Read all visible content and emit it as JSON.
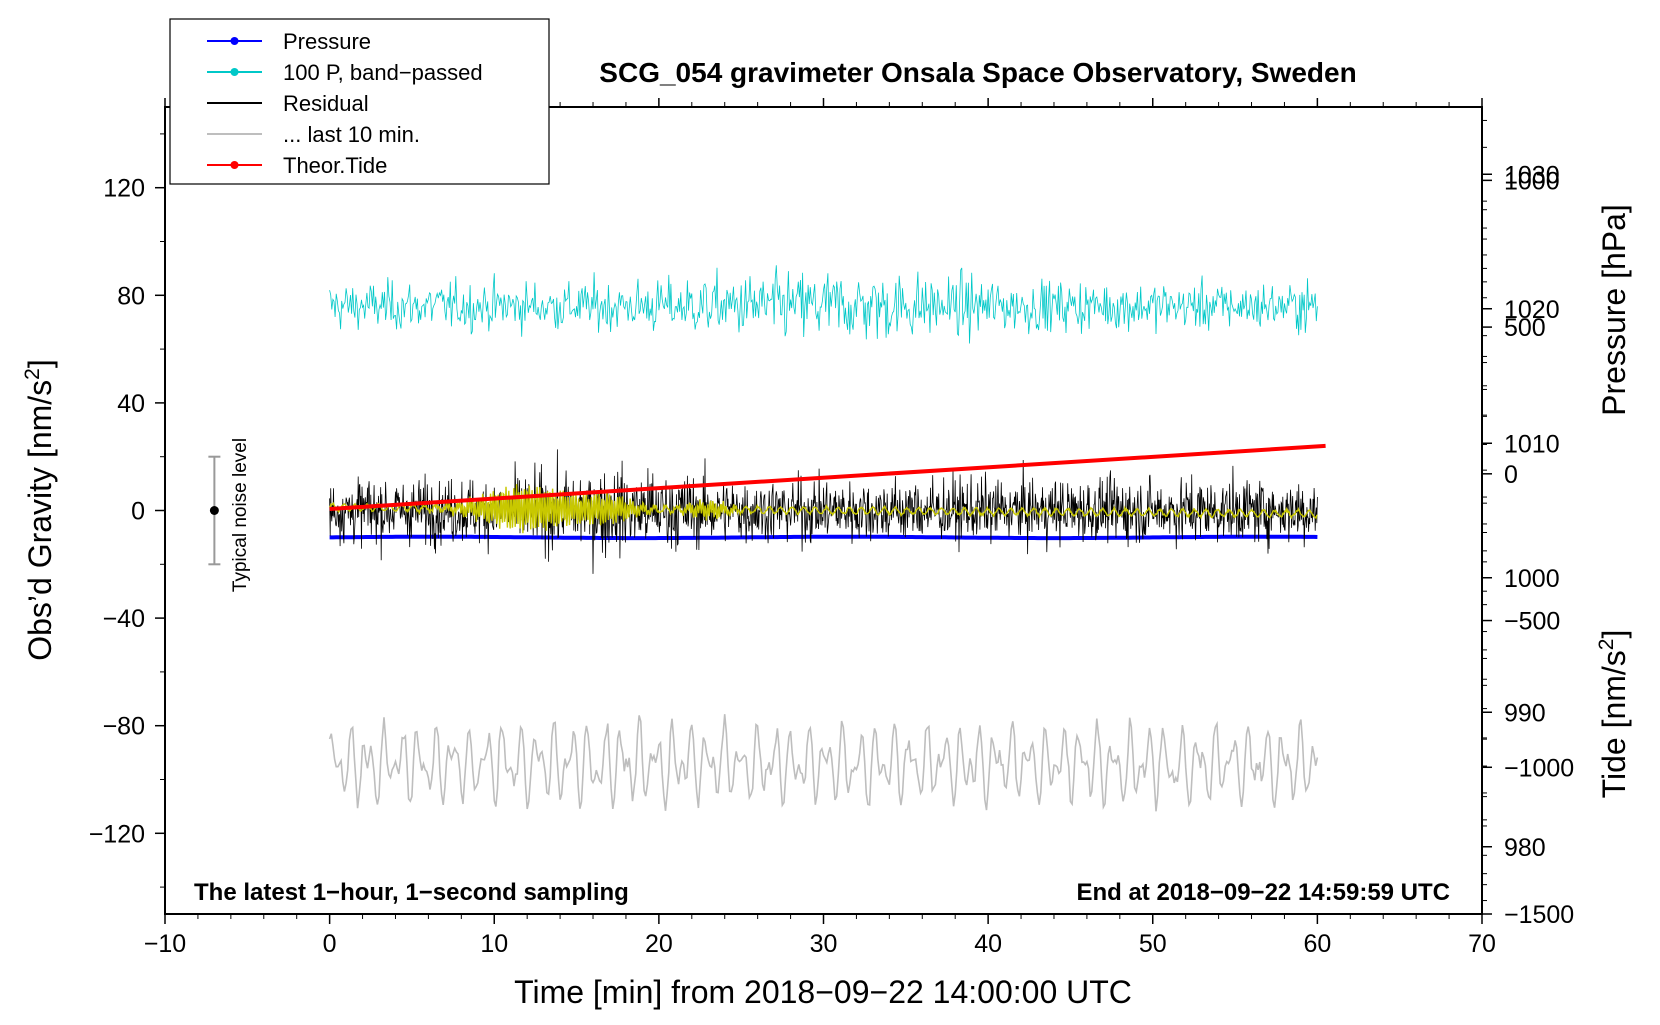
{
  "chart_data": {
    "type": "line",
    "title": "SCG_054 gravimeter Onsala Space Observatory, Sweden",
    "xlabel": "Time [min] from 2018−09−22 14:00:00 UTC",
    "ylabel_left": "Obs’d Gravity [nm/s",
    "ylabel_left_suffix": "]",
    "ylabel_pressure": "Pressure [hPa]",
    "ylabel_tide": "Tide [nm/s",
    "ylabel_tide_suffix": "]",
    "superscript": "2",
    "xlim": [
      -10,
      70
    ],
    "ylim_left": [
      -150,
      150
    ],
    "ylim_pressure": [
      975,
      1035
    ],
    "ylim_tide": [
      -1500,
      1250
    ],
    "x_ticks": [
      -10,
      0,
      10,
      20,
      30,
      40,
      50,
      60,
      70
    ],
    "x_tick_labels": [
      "−10",
      "0",
      "10",
      "20",
      "30",
      "40",
      "50",
      "60",
      "70"
    ],
    "y_left_ticks": [
      120,
      80,
      40,
      0,
      -40,
      -80,
      -120
    ],
    "y_left_tick_labels": [
      "120",
      "80",
      "40",
      "0",
      "−40",
      "−80",
      "−120"
    ],
    "y_pressure_ticks": [
      1030,
      1020,
      1010,
      1000,
      990,
      980
    ],
    "y_pressure_tick_labels": [
      "1030",
      "1020",
      "1010",
      "1000",
      "990",
      "980"
    ],
    "y_tide_ticks": [
      1000,
      500,
      0,
      -500,
      -1000,
      -1500
    ],
    "y_tide_tick_labels": [
      "1000",
      "500",
      "0",
      "−500",
      "−1000",
      "−1500"
    ],
    "annotation_left": "The latest 1−hour, 1−second sampling",
    "annotation_right": "End at 2018−09−22 14:59:59 UTC",
    "noise_label": "Typical noise level",
    "noise_bar": {
      "x": -7,
      "center": 0,
      "half_range": 20
    },
    "legend": [
      {
        "label": "Pressure",
        "color": "#0000ff",
        "marker": true
      },
      {
        "label": "100 P, band−passed",
        "color": "#00c8c8",
        "marker": true
      },
      {
        "label": "Residual",
        "color": "#000000",
        "marker": false
      },
      {
        "label": "... last 10 min.",
        "color": "#bebebe",
        "marker": false
      },
      {
        "label": "Theor.Tide",
        "color": "#ff0000",
        "marker": true
      }
    ],
    "series": [
      {
        "name": "Pressure",
        "axis": "pressure",
        "color": "#0000ff",
        "x_range": [
          0,
          60
        ],
        "mean_hPa": 1003.0,
        "values_hPa": [
          1003.0,
          1003.0,
          1003.0,
          1003.0,
          1003.0,
          1003.0,
          1003.0
        ]
      },
      {
        "name": "100 P, band-passed",
        "axis": "left",
        "color": "#00c8c8",
        "x_range": [
          0,
          60
        ],
        "offset": 76,
        "amplitude_typical": 10,
        "amplitude_max": 36
      },
      {
        "name": "Residual",
        "axis": "left",
        "color": "#000000",
        "x_range": [
          0,
          60
        ],
        "offset": 0,
        "amplitude_typical": 18,
        "amplitude_max": 45
      },
      {
        "name": "Residual smoothed",
        "axis": "left",
        "color": "#c8c800",
        "x_range": [
          0,
          60
        ],
        "offset": 0,
        "burst_center_min": 12,
        "burst_amplitude": 8
      },
      {
        "name": "... last 10 min.",
        "axis": "left",
        "color": "#bebebe",
        "x_range": [
          0,
          60
        ],
        "offset": -94,
        "amplitude_typical": 16,
        "amplitude_max": 32
      },
      {
        "name": "Theor.Tide",
        "axis": "tide",
        "color": "#ff0000",
        "x": [
          0,
          60.5
        ],
        "values": [
          -120,
          95
        ]
      }
    ]
  }
}
